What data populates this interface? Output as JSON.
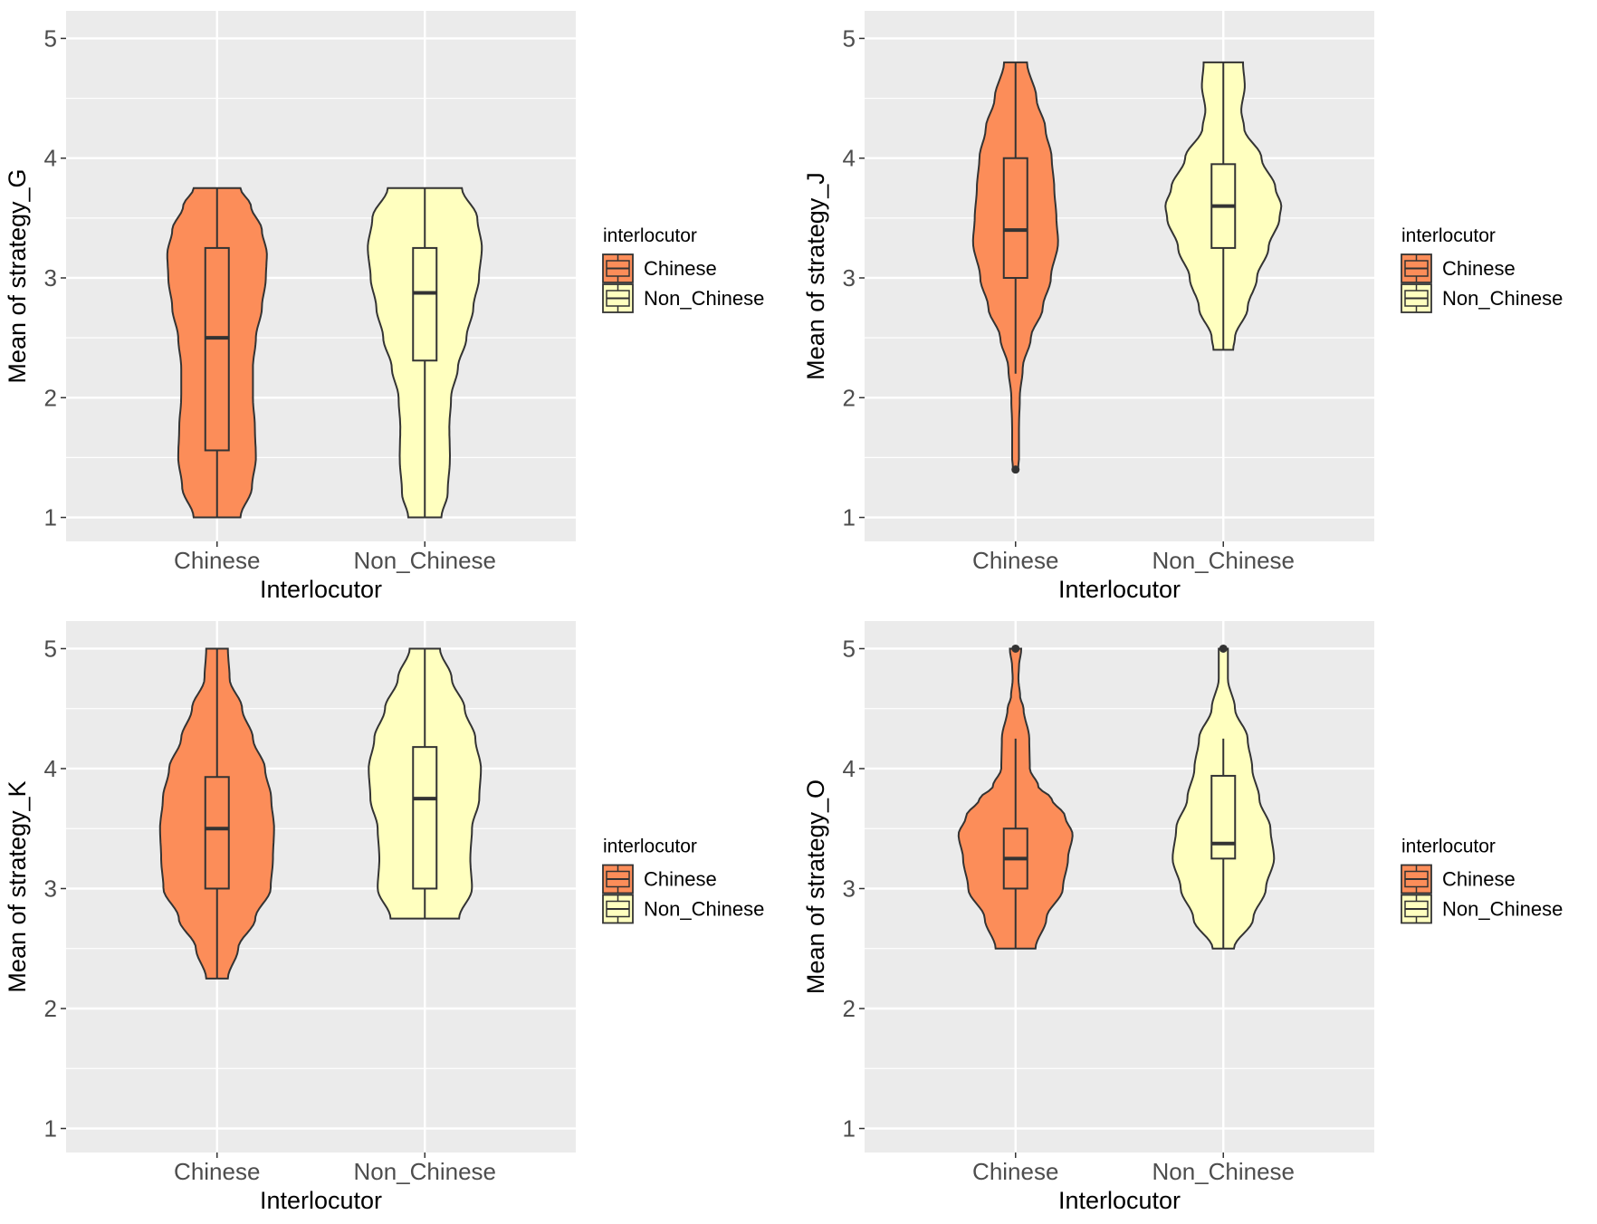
{
  "chart_data": [
    {
      "type": "violin",
      "ylabel": "Mean of strategy_G",
      "xlabel": "Interlocutor",
      "categories": [
        "Chinese",
        "Non_Chinese"
      ],
      "yticks": [
        1,
        2,
        3,
        4,
        5
      ],
      "ylim": [
        0.8,
        5.23
      ],
      "grid": true,
      "legend": {
        "title": "interlocutor",
        "position": "right",
        "entries": [
          "Chinese",
          "Non_Chinese"
        ]
      },
      "groups": [
        {
          "name": "Chinese",
          "box": {
            "min": 1.0,
            "q1": 1.56,
            "median": 2.5,
            "q3": 3.25,
            "max": 3.75
          },
          "outliers": [],
          "density": [
            [
              1.0,
              0.47
            ],
            [
              1.25,
              0.7
            ],
            [
              1.5,
              0.78
            ],
            [
              1.75,
              0.76
            ],
            [
              2.0,
              0.72
            ],
            [
              2.25,
              0.72
            ],
            [
              2.5,
              0.78
            ],
            [
              2.75,
              0.9
            ],
            [
              3.0,
              0.98
            ],
            [
              3.2,
              1.0
            ],
            [
              3.4,
              0.9
            ],
            [
              3.6,
              0.68
            ],
            [
              3.75,
              0.47
            ]
          ]
        },
        {
          "name": "Non_Chinese",
          "box": {
            "min": 1.0,
            "q1": 2.31,
            "median": 2.875,
            "q3": 3.25,
            "max": 3.75
          },
          "outliers": [],
          "density": [
            [
              1.0,
              0.29
            ],
            [
              1.2,
              0.4
            ],
            [
              1.5,
              0.44
            ],
            [
              1.75,
              0.43
            ],
            [
              2.0,
              0.46
            ],
            [
              2.25,
              0.58
            ],
            [
              2.5,
              0.73
            ],
            [
              2.75,
              0.85
            ],
            [
              3.0,
              0.95
            ],
            [
              3.25,
              1.0
            ],
            [
              3.5,
              0.92
            ],
            [
              3.75,
              0.65
            ]
          ]
        }
      ]
    },
    {
      "type": "violin",
      "ylabel": "Mean of strategy_J",
      "xlabel": "Interlocutor",
      "categories": [
        "Chinese",
        "Non_Chinese"
      ],
      "yticks": [
        1,
        2,
        3,
        4,
        5
      ],
      "ylim": [
        0.8,
        5.23
      ],
      "grid": true,
      "legend": {
        "title": "interlocutor",
        "position": "right",
        "entries": [
          "Chinese",
          "Non_Chinese"
        ]
      },
      "groups": [
        {
          "name": "Chinese",
          "box": {
            "min": 2.2,
            "q1": 3.0,
            "median": 3.4,
            "q3": 4.0,
            "max": 4.8
          },
          "outliers": [
            1.4
          ],
          "density": [
            [
              1.4,
              0.06
            ],
            [
              1.5,
              0.08
            ],
            [
              1.75,
              0.08
            ],
            [
              2.0,
              0.1
            ],
            [
              2.25,
              0.17
            ],
            [
              2.5,
              0.36
            ],
            [
              2.75,
              0.64
            ],
            [
              3.0,
              0.83
            ],
            [
              3.3,
              1.0
            ],
            [
              3.5,
              0.96
            ],
            [
              3.75,
              0.91
            ],
            [
              4.0,
              0.85
            ],
            [
              4.25,
              0.7
            ],
            [
              4.5,
              0.49
            ],
            [
              4.8,
              0.27
            ]
          ]
        },
        {
          "name": "Non_Chinese",
          "box": {
            "min": 2.4,
            "q1": 3.25,
            "median": 3.6,
            "q3": 3.95,
            "max": 4.8
          },
          "outliers": [],
          "density": [
            [
              2.4,
              0.17
            ],
            [
              2.5,
              0.2
            ],
            [
              2.75,
              0.42
            ],
            [
              3.0,
              0.58
            ],
            [
              3.25,
              0.78
            ],
            [
              3.5,
              0.97
            ],
            [
              3.6,
              1.0
            ],
            [
              3.75,
              0.9
            ],
            [
              4.0,
              0.66
            ],
            [
              4.25,
              0.36
            ],
            [
              4.4,
              0.31
            ],
            [
              4.6,
              0.37
            ],
            [
              4.8,
              0.34
            ]
          ]
        }
      ]
    },
    {
      "type": "violin",
      "ylabel": "Mean of strategy_K",
      "xlabel": "Interlocutor",
      "categories": [
        "Chinese",
        "Non_Chinese"
      ],
      "yticks": [
        1,
        2,
        3,
        4,
        5
      ],
      "ylim": [
        0.8,
        5.23
      ],
      "grid": true,
      "legend": {
        "title": "interlocutor",
        "position": "right",
        "entries": [
          "Chinese",
          "Non_Chinese"
        ]
      },
      "groups": [
        {
          "name": "Chinese",
          "box": {
            "min": 2.25,
            "q1": 3.0,
            "median": 3.5,
            "q3": 3.93,
            "max": 5.0
          },
          "outliers": [],
          "density": [
            [
              2.25,
              0.19
            ],
            [
              2.5,
              0.37
            ],
            [
              2.75,
              0.67
            ],
            [
              3.0,
              0.94
            ],
            [
              3.25,
              0.98
            ],
            [
              3.5,
              1.0
            ],
            [
              3.75,
              0.95
            ],
            [
              4.0,
              0.84
            ],
            [
              4.25,
              0.63
            ],
            [
              4.5,
              0.44
            ],
            [
              4.75,
              0.22
            ],
            [
              5.0,
              0.19
            ]
          ]
        },
        {
          "name": "Non_Chinese",
          "box": {
            "min": 2.75,
            "q1": 3.0,
            "median": 3.75,
            "q3": 4.18,
            "max": 5.0
          },
          "outliers": [],
          "density": [
            [
              2.75,
              0.61
            ],
            [
              3.0,
              0.84
            ],
            [
              3.25,
              0.81
            ],
            [
              3.5,
              0.84
            ],
            [
              3.75,
              0.97
            ],
            [
              4.0,
              1.0
            ],
            [
              4.25,
              0.9
            ],
            [
              4.5,
              0.71
            ],
            [
              4.75,
              0.48
            ],
            [
              5.0,
              0.27
            ]
          ]
        }
      ]
    },
    {
      "type": "violin",
      "ylabel": "Mean of strategy_O",
      "xlabel": "Interlocutor",
      "categories": [
        "Chinese",
        "Non_Chinese"
      ],
      "yticks": [
        1,
        2,
        3,
        4,
        5
      ],
      "ylim": [
        0.8,
        5.23
      ],
      "grid": true,
      "legend": {
        "title": "interlocutor",
        "position": "right",
        "entries": [
          "Chinese",
          "Non_Chinese"
        ]
      },
      "groups": [
        {
          "name": "Chinese",
          "box": {
            "min": 2.5,
            "q1": 3.0,
            "median": 3.25,
            "q3": 3.5,
            "max": 4.25
          },
          "outliers": [
            5.0
          ],
          "density": [
            [
              2.5,
              0.35
            ],
            [
              2.75,
              0.54
            ],
            [
              3.0,
              0.83
            ],
            [
              3.25,
              0.92
            ],
            [
              3.45,
              1.0
            ],
            [
              3.6,
              0.87
            ],
            [
              3.75,
              0.63
            ],
            [
              3.85,
              0.4
            ],
            [
              4.0,
              0.25
            ],
            [
              4.25,
              0.24
            ],
            [
              4.5,
              0.14
            ],
            [
              4.6,
              0.08
            ],
            [
              4.75,
              0.05
            ],
            [
              4.85,
              0.06
            ],
            [
              5.0,
              0.1
            ]
          ]
        },
        {
          "name": "Non_Chinese",
          "box": {
            "min": 2.5,
            "q1": 3.25,
            "median": 3.375,
            "q3": 3.94,
            "max": 4.25
          },
          "outliers": [
            5.0
          ],
          "density": [
            [
              2.5,
              0.21
            ],
            [
              2.75,
              0.59
            ],
            [
              3.0,
              0.84
            ],
            [
              3.25,
              1.0
            ],
            [
              3.5,
              0.93
            ],
            [
              3.75,
              0.71
            ],
            [
              4.0,
              0.57
            ],
            [
              4.25,
              0.48
            ],
            [
              4.5,
              0.23
            ],
            [
              4.75,
              0.09
            ],
            [
              5.0,
              0.09
            ]
          ]
        }
      ]
    }
  ],
  "colors": {
    "Chinese": "#FC8D59",
    "Non_Chinese": "#FFFFBF",
    "panel_background": "#EBEBEB",
    "grid": "#FFFFFF",
    "outline": "#333333"
  }
}
